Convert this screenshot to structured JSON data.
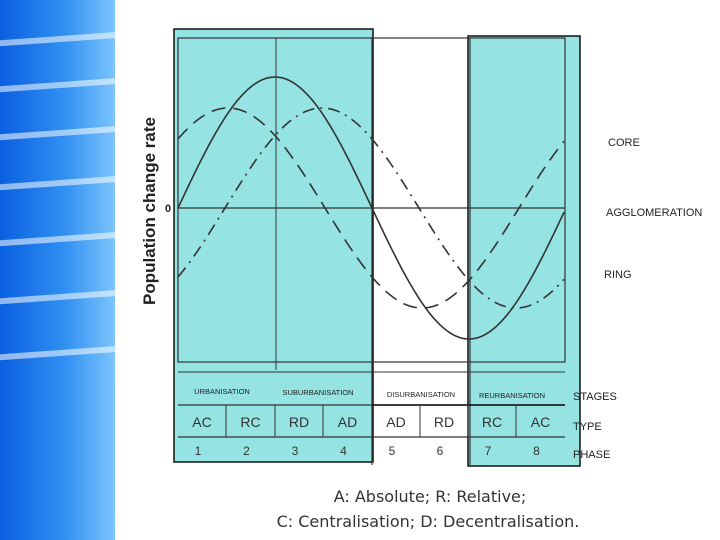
{
  "y_axis_label": "Population change rate",
  "zero_label": "0",
  "curves": [
    {
      "name": "CORE",
      "style": "solid"
    },
    {
      "name": "AGGLOMERATION",
      "style": "dash-dot"
    },
    {
      "name": "RING",
      "style": "dashed"
    }
  ],
  "stages": [
    "URBANISATION",
    "SUBURBANISATION",
    "DISURBANISATION",
    "REURBANISATION"
  ],
  "types": [
    "AC",
    "RC",
    "RD",
    "AD",
    "AD",
    "RD",
    "RC",
    "AC"
  ],
  "phases": [
    "1",
    "2",
    "3",
    "4",
    "5",
    "6",
    "7",
    "8"
  ],
  "row_labels": {
    "stages": "STAGES",
    "type": "TYPE",
    "phase": "PHASE"
  },
  "legend": {
    "line1": "A: Absolute; R: Relative;",
    "line2": "C: Centralisation; D: Decentralisation."
  },
  "colors": {
    "highlight": "#95e3e3",
    "sidebar": "#2f8ff2"
  }
}
